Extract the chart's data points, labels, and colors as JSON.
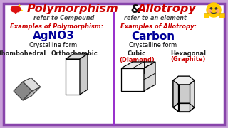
{
  "bg_outer": "#c8a0d8",
  "bg_inner": "#ffffff",
  "border_color": "#8844aa",
  "title_polymorphism": "Polymorphism",
  "title_and": " & ",
  "title_allotropy": "Allotropy",
  "subtitle_left": "refer to Compound",
  "subtitle_right": "refer to an element",
  "examples_poly": "Examples of Polymorphism:",
  "examples_allo": "Examples of Allotropy:",
  "compound": "AgNO3",
  "element": "Carbon",
  "crystalline": "Crystalline form",
  "labels_poly": [
    "Rhombohedral",
    "Orthorhombic"
  ],
  "labels_allo_top": [
    "Cubic",
    "Hexagonal"
  ],
  "labels_allo_bot": [
    "(Diamond)",
    "(Graphite)"
  ],
  "title_color": "#cc0000",
  "subtitle_color": "#444444",
  "examples_color": "#cc0000",
  "compound_color": "#000099",
  "element_color": "#000099",
  "diamond_label_color": "#cc0000",
  "graphite_label_color": "#cc0000",
  "label_color": "#222222",
  "divider_color": "#9933cc"
}
